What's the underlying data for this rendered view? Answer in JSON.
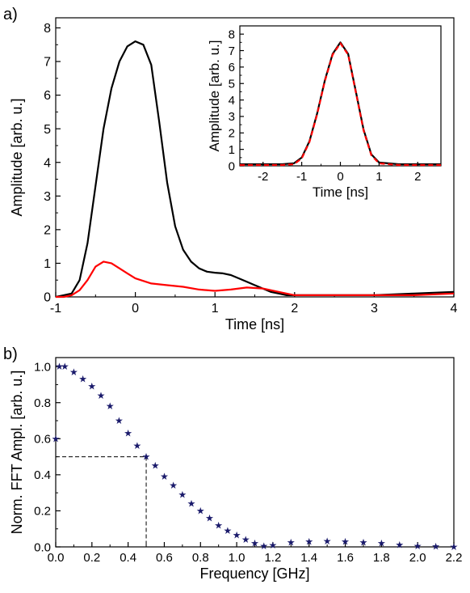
{
  "panel_labels": {
    "a": "a)",
    "b": "b)"
  },
  "chart_data": [
    {
      "id": "main",
      "type": "line",
      "xlabel": "Time [ns]",
      "ylabel": "Amplitude [arb. u.]",
      "xlim": [
        -1,
        4
      ],
      "ylim": [
        0,
        8.3
      ],
      "xticks": [
        -1,
        0,
        1,
        2,
        3,
        4
      ],
      "yticks": [
        0,
        1,
        2,
        3,
        4,
        5,
        6,
        7,
        8
      ],
      "series": [
        {
          "color": "#000000",
          "x": [
            -1.0,
            -0.9,
            -0.8,
            -0.7,
            -0.6,
            -0.5,
            -0.4,
            -0.3,
            -0.2,
            -0.1,
            0.0,
            0.1,
            0.2,
            0.3,
            0.4,
            0.5,
            0.6,
            0.7,
            0.8,
            0.9,
            1.0,
            1.1,
            1.2,
            1.3,
            1.4,
            1.5,
            1.6,
            1.7,
            1.8,
            1.9,
            2.0,
            2.5,
            3.0,
            3.5,
            4.0
          ],
          "y": [
            0.0,
            0.05,
            0.1,
            0.5,
            1.6,
            3.3,
            5.0,
            6.2,
            7.0,
            7.45,
            7.6,
            7.5,
            6.9,
            5.2,
            3.4,
            2.1,
            1.4,
            1.05,
            0.85,
            0.75,
            0.72,
            0.7,
            0.65,
            0.55,
            0.45,
            0.35,
            0.25,
            0.15,
            0.1,
            0.05,
            0.05,
            0.05,
            0.05,
            0.1,
            0.15
          ]
        },
        {
          "color": "#ff0000",
          "x": [
            -1.0,
            -0.9,
            -0.8,
            -0.7,
            -0.6,
            -0.5,
            -0.4,
            -0.3,
            -0.2,
            -0.1,
            0.0,
            0.2,
            0.4,
            0.6,
            0.8,
            1.0,
            1.2,
            1.4,
            1.6,
            1.8,
            2.0,
            2.5,
            3.0,
            3.5,
            4.0
          ],
          "y": [
            0.0,
            0.0,
            0.05,
            0.2,
            0.5,
            0.9,
            1.05,
            1.0,
            0.85,
            0.7,
            0.55,
            0.4,
            0.35,
            0.3,
            0.22,
            0.18,
            0.22,
            0.28,
            0.25,
            0.15,
            0.05,
            0.05,
            0.05,
            0.05,
            0.1
          ]
        }
      ]
    },
    {
      "id": "inset",
      "type": "line",
      "xlabel": "Time [ns]",
      "ylabel": "Amplitude [arb. u.]",
      "xlim": [
        -2.6,
        2.6
      ],
      "ylim": [
        0,
        8.5
      ],
      "xticks": [
        -2,
        -1,
        0,
        1,
        2
      ],
      "yticks": [
        0,
        1,
        2,
        3,
        4,
        5,
        6,
        7,
        8
      ],
      "series": [
        {
          "color": "#000000",
          "style": "solid",
          "x": [
            -2.6,
            -1.5,
            -1.2,
            -1.0,
            -0.8,
            -0.6,
            -0.4,
            -0.2,
            0.0,
            0.2,
            0.4,
            0.6,
            0.8,
            1.0,
            1.5,
            2.6
          ],
          "y": [
            0.1,
            0.1,
            0.15,
            0.5,
            1.5,
            3.2,
            5.2,
            6.8,
            7.5,
            6.8,
            4.5,
            2.2,
            0.7,
            0.2,
            0.1,
            0.1
          ]
        },
        {
          "color": "#ff0000",
          "style": "dashed",
          "x": [
            -2.6,
            -1.5,
            -1.2,
            -1.0,
            -0.8,
            -0.6,
            -0.4,
            -0.2,
            0.0,
            0.2,
            0.4,
            0.6,
            0.8,
            1.0,
            1.5,
            2.6
          ],
          "y": [
            0.05,
            0.05,
            0.1,
            0.45,
            1.45,
            3.15,
            5.15,
            6.75,
            7.45,
            6.75,
            4.45,
            2.15,
            0.65,
            0.15,
            0.05,
            0.05
          ]
        }
      ]
    },
    {
      "id": "fft",
      "type": "scatter",
      "marker": "star",
      "color": "#1a1a6b",
      "xlabel": "Frequency [GHz]",
      "ylabel": "Norm. FFT Ampl. [arb. u.]",
      "xlim": [
        0,
        2.2
      ],
      "ylim": [
        0,
        1.05
      ],
      "xticks": [
        "0.0",
        "0.2",
        "0.4",
        "0.6",
        "0.8",
        "1.0",
        "1.2",
        "1.4",
        "1.6",
        "1.8",
        "2.0",
        "2.2"
      ],
      "yticks": [
        "0.0",
        "0.2",
        "0.4",
        "0.6",
        "0.8",
        "1.0"
      ],
      "points": [
        [
          0.0,
          0.6
        ],
        [
          0.02,
          1.0
        ],
        [
          0.05,
          1.0
        ],
        [
          0.1,
          0.97
        ],
        [
          0.15,
          0.93
        ],
        [
          0.2,
          0.89
        ],
        [
          0.25,
          0.84
        ],
        [
          0.3,
          0.78
        ],
        [
          0.35,
          0.7
        ],
        [
          0.4,
          0.63
        ],
        [
          0.45,
          0.56
        ],
        [
          0.5,
          0.5
        ],
        [
          0.55,
          0.45
        ],
        [
          0.6,
          0.39
        ],
        [
          0.65,
          0.34
        ],
        [
          0.7,
          0.29
        ],
        [
          0.75,
          0.24
        ],
        [
          0.8,
          0.2
        ],
        [
          0.85,
          0.16
        ],
        [
          0.9,
          0.12
        ],
        [
          0.95,
          0.09
        ],
        [
          1.0,
          0.065
        ],
        [
          1.05,
          0.04
        ],
        [
          1.1,
          0.02
        ],
        [
          1.15,
          0.005
        ],
        [
          1.2,
          0.01
        ],
        [
          1.3,
          0.025
        ],
        [
          1.4,
          0.03
        ],
        [
          1.5,
          0.032
        ],
        [
          1.6,
          0.03
        ],
        [
          1.7,
          0.025
        ],
        [
          1.8,
          0.02
        ],
        [
          1.9,
          0.012
        ],
        [
          2.0,
          0.005
        ],
        [
          2.1,
          0.002
        ],
        [
          2.2,
          0.0
        ]
      ],
      "guide": {
        "x": 0.5,
        "y": 0.5,
        "style": "dashed"
      }
    }
  ]
}
